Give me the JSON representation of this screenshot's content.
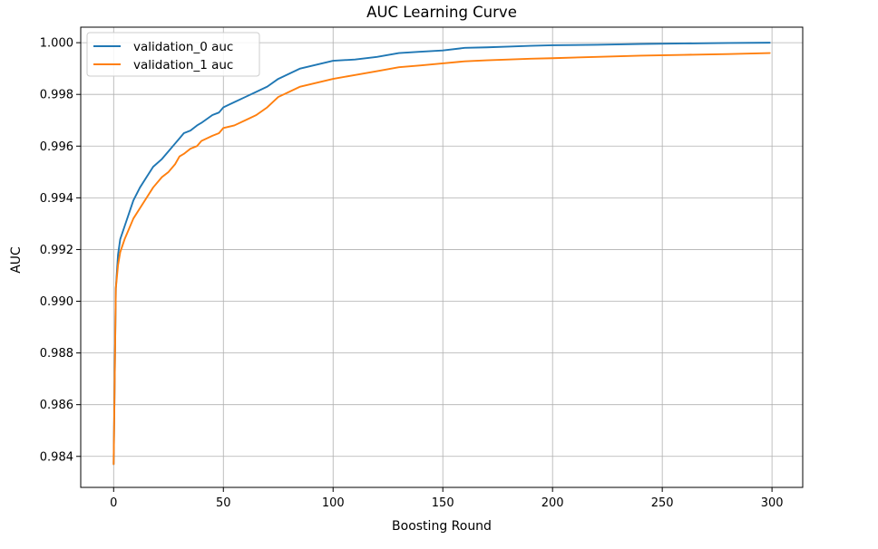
{
  "chart_data": {
    "type": "line",
    "title": "AUC Learning Curve",
    "xlabel": "Boosting Round",
    "ylabel": "AUC",
    "xlim": [
      -15,
      314
    ],
    "ylim": [
      0.9828,
      1.0006
    ],
    "xticks": [
      0,
      50,
      100,
      150,
      200,
      250,
      300
    ],
    "yticks": [
      0.984,
      0.986,
      0.988,
      0.99,
      0.992,
      0.994,
      0.996,
      0.998,
      1.0
    ],
    "ytick_labels": [
      "0.984",
      "0.986",
      "0.988",
      "0.990",
      "0.992",
      "0.994",
      "0.996",
      "0.998",
      "1.000"
    ],
    "grid": true,
    "legend_position": "top-left",
    "series": [
      {
        "name": "validation_0 auc",
        "color": "#1f77b4",
        "x": [
          0,
          1,
          2,
          3,
          5,
          7,
          9,
          12,
          15,
          18,
          22,
          25,
          28,
          30,
          32,
          35,
          38,
          40,
          45,
          48,
          50,
          55,
          60,
          65,
          70,
          75,
          80,
          85,
          90,
          95,
          100,
          110,
          120,
          130,
          140,
          150,
          160,
          170,
          180,
          190,
          200,
          220,
          240,
          260,
          280,
          299
        ],
        "y": [
          0.9837,
          0.9905,
          0.9918,
          0.9924,
          0.9929,
          0.9934,
          0.9939,
          0.9944,
          0.9948,
          0.9952,
          0.9955,
          0.9958,
          0.9961,
          0.9963,
          0.9965,
          0.9966,
          0.9968,
          0.9969,
          0.9972,
          0.9973,
          0.9975,
          0.9977,
          0.9979,
          0.9981,
          0.9983,
          0.9986,
          0.9988,
          0.999,
          0.9991,
          0.9992,
          0.9993,
          0.99935,
          0.99945,
          0.9996,
          0.99965,
          0.9997,
          0.9998,
          0.99982,
          0.99985,
          0.99988,
          0.9999,
          0.99992,
          0.99995,
          0.99997,
          0.99999,
          1.0
        ]
      },
      {
        "name": "validation_1 auc",
        "color": "#ff7f0e",
        "x": [
          0,
          1,
          2,
          3,
          5,
          7,
          9,
          12,
          15,
          18,
          22,
          25,
          28,
          30,
          32,
          35,
          38,
          40,
          45,
          48,
          50,
          55,
          60,
          65,
          70,
          75,
          80,
          85,
          90,
          95,
          100,
          110,
          120,
          130,
          140,
          150,
          160,
          170,
          180,
          190,
          200,
          220,
          240,
          260,
          280,
          299
        ],
        "y": [
          0.9837,
          0.9905,
          0.9914,
          0.9919,
          0.9924,
          0.9928,
          0.9932,
          0.9936,
          0.994,
          0.9944,
          0.9948,
          0.995,
          0.9953,
          0.9956,
          0.9957,
          0.9959,
          0.996,
          0.9962,
          0.9964,
          0.9965,
          0.9967,
          0.9968,
          0.997,
          0.9972,
          0.9975,
          0.9979,
          0.9981,
          0.9983,
          0.9984,
          0.9985,
          0.9986,
          0.99875,
          0.9989,
          0.99905,
          0.99912,
          0.9992,
          0.99928,
          0.99932,
          0.99935,
          0.99938,
          0.9994,
          0.99945,
          0.9995,
          0.99953,
          0.99956,
          0.9996
        ]
      }
    ]
  }
}
